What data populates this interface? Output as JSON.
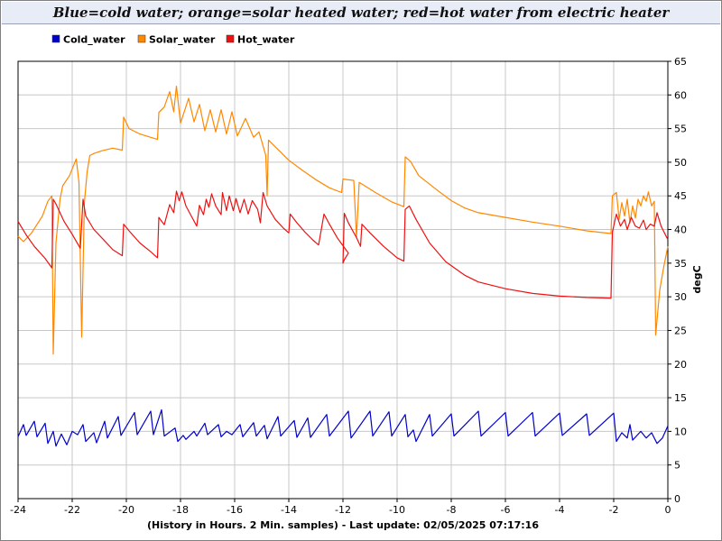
{
  "chart_data": {
    "type": "line",
    "title": "Blue=cold water; orange=solar heated water; red=hot water from electric heater",
    "xlabel": "(History in Hours. 2 Min. samples) - Last update: 02/05/2025 07:17:16",
    "ylabel": "degC",
    "xlim": [
      -24,
      0
    ],
    "ylim": [
      0,
      65
    ],
    "x_ticks": [
      "-24",
      "-22",
      "-20",
      "-18",
      "-16",
      "-14",
      "-12",
      "-10",
      "-8",
      "-6",
      "-4",
      "-2",
      "0"
    ],
    "y_ticks": [
      "0",
      "5",
      "10",
      "15",
      "20",
      "25",
      "30",
      "35",
      "40",
      "45",
      "50",
      "55",
      "60",
      "65"
    ],
    "y_axis_side": "right",
    "grid": true,
    "legend_position": "top-left",
    "series": [
      {
        "name": "Cold_water",
        "color": "#0000cc",
        "points": [
          [
            -24,
            9.2
          ],
          [
            -23.8,
            11
          ],
          [
            -23.7,
            9.4
          ],
          [
            -23.4,
            11.5
          ],
          [
            -23.3,
            9.2
          ],
          [
            -23,
            11.2
          ],
          [
            -22.9,
            8.2
          ],
          [
            -22.7,
            10
          ],
          [
            -22.6,
            7.8
          ],
          [
            -22.4,
            9.6
          ],
          [
            -22.2,
            8
          ],
          [
            -22,
            10
          ],
          [
            -21.8,
            9.5
          ],
          [
            -21.6,
            11
          ],
          [
            -21.5,
            8.5
          ],
          [
            -21.2,
            9.8
          ],
          [
            -21.1,
            8.3
          ],
          [
            -20.8,
            11.5
          ],
          [
            -20.7,
            9
          ],
          [
            -20.3,
            12.2
          ],
          [
            -20.2,
            9.4
          ],
          [
            -19.7,
            12.8
          ],
          [
            -19.6,
            9.5
          ],
          [
            -19.1,
            13
          ],
          [
            -19,
            9.5
          ],
          [
            -18.7,
            13.2
          ],
          [
            -18.6,
            9.3
          ],
          [
            -18.2,
            10.5
          ],
          [
            -18.1,
            8.5
          ],
          [
            -17.9,
            9.4
          ],
          [
            -17.8,
            8.8
          ],
          [
            -17.5,
            10
          ],
          [
            -17.4,
            9.3
          ],
          [
            -17.1,
            11.2
          ],
          [
            -17,
            9.5
          ],
          [
            -16.6,
            11
          ],
          [
            -16.5,
            9.2
          ],
          [
            -16.3,
            10
          ],
          [
            -16.1,
            9.5
          ],
          [
            -15.8,
            11
          ],
          [
            -15.7,
            9.2
          ],
          [
            -15.3,
            11.3
          ],
          [
            -15.2,
            9.3
          ],
          [
            -14.9,
            10.9
          ],
          [
            -14.8,
            8.9
          ],
          [
            -14.4,
            12.2
          ],
          [
            -14.3,
            9.3
          ],
          [
            -13.8,
            11.6
          ],
          [
            -13.7,
            9.1
          ],
          [
            -13.3,
            12
          ],
          [
            -13.2,
            9.1
          ],
          [
            -12.6,
            12.5
          ],
          [
            -12.5,
            9.3
          ],
          [
            -11.8,
            13
          ],
          [
            -11.7,
            9
          ],
          [
            -11,
            13
          ],
          [
            -10.9,
            9.3
          ],
          [
            -10.3,
            12.9
          ],
          [
            -10.2,
            9.3
          ],
          [
            -9.7,
            12.5
          ],
          [
            -9.6,
            9.2
          ],
          [
            -9.4,
            10.2
          ],
          [
            -9.3,
            8.5
          ],
          [
            -8.8,
            12.5
          ],
          [
            -8.7,
            9.3
          ],
          [
            -8,
            12.6
          ],
          [
            -7.9,
            9.3
          ],
          [
            -7,
            13
          ],
          [
            -6.9,
            9.3
          ],
          [
            -6,
            12.8
          ],
          [
            -5.9,
            9.3
          ],
          [
            -5,
            12.8
          ],
          [
            -4.9,
            9.3
          ],
          [
            -4,
            12.7
          ],
          [
            -3.9,
            9.4
          ],
          [
            -3,
            12.6
          ],
          [
            -2.9,
            9.4
          ],
          [
            -2,
            12.7
          ],
          [
            -1.9,
            8.5
          ],
          [
            -1.7,
            9.8
          ],
          [
            -1.5,
            9
          ],
          [
            -1.4,
            11
          ],
          [
            -1.3,
            8.7
          ],
          [
            -1,
            10
          ],
          [
            -0.8,
            9
          ],
          [
            -0.6,
            9.8
          ],
          [
            -0.4,
            8.2
          ],
          [
            -0.2,
            9
          ],
          [
            0,
            10.8
          ]
        ]
      },
      {
        "name": "Solar_water",
        "color": "#ff8800",
        "points": [
          [
            -24,
            39
          ],
          [
            -23.8,
            38.2
          ],
          [
            -23.5,
            39.5
          ],
          [
            -23.1,
            42
          ],
          [
            -22.9,
            44.2
          ],
          [
            -22.75,
            45
          ],
          [
            -22.7,
            21.5
          ],
          [
            -22.6,
            38
          ],
          [
            -22.45,
            44.5
          ],
          [
            -22.35,
            46.5
          ],
          [
            -22.1,
            48
          ],
          [
            -21.85,
            50.5
          ],
          [
            -21.75,
            47
          ],
          [
            -21.65,
            24
          ],
          [
            -21.55,
            44
          ],
          [
            -21.45,
            48.5
          ],
          [
            -21.35,
            51
          ],
          [
            -21.2,
            51.3
          ],
          [
            -20.9,
            51.7
          ],
          [
            -20.5,
            52.1
          ],
          [
            -20.15,
            51.8
          ],
          [
            -20.1,
            56.7
          ],
          [
            -19.9,
            55
          ],
          [
            -19.5,
            54.2
          ],
          [
            -19.1,
            53.7
          ],
          [
            -18.85,
            53.4
          ],
          [
            -18.8,
            57.4
          ],
          [
            -18.6,
            58.2
          ],
          [
            -18.4,
            60.5
          ],
          [
            -18.25,
            57.5
          ],
          [
            -18.15,
            61.3
          ],
          [
            -18,
            55.8
          ],
          [
            -17.7,
            59.5
          ],
          [
            -17.5,
            56
          ],
          [
            -17.3,
            58.6
          ],
          [
            -17.1,
            54.7
          ],
          [
            -16.9,
            57.8
          ],
          [
            -16.7,
            54.5
          ],
          [
            -16.5,
            57.8
          ],
          [
            -16.3,
            54.2
          ],
          [
            -16.1,
            57.5
          ],
          [
            -15.9,
            53.9
          ],
          [
            -15.6,
            56.5
          ],
          [
            -15.3,
            53.7
          ],
          [
            -15.1,
            54.5
          ],
          [
            -14.85,
            51
          ],
          [
            -14.8,
            45
          ],
          [
            -14.75,
            53.3
          ],
          [
            -14.55,
            52.5
          ],
          [
            -14.3,
            51.5
          ],
          [
            -14,
            50.3
          ],
          [
            -13.5,
            48.8
          ],
          [
            -13,
            47.4
          ],
          [
            -12.5,
            46.2
          ],
          [
            -12.05,
            45.5
          ],
          [
            -12,
            47.5
          ],
          [
            -11.6,
            47.3
          ],
          [
            -11.5,
            38.8
          ],
          [
            -11.4,
            47
          ],
          [
            -11.2,
            46.5
          ],
          [
            -10.8,
            45.5
          ],
          [
            -10.2,
            44.1
          ],
          [
            -9.75,
            43.4
          ],
          [
            -9.7,
            50.8
          ],
          [
            -9.5,
            50.1
          ],
          [
            -9.2,
            48
          ],
          [
            -8.5,
            45.8
          ],
          [
            -8,
            44.3
          ],
          [
            -7.5,
            43.2
          ],
          [
            -7,
            42.5
          ],
          [
            -6,
            41.8
          ],
          [
            -5,
            41.1
          ],
          [
            -4,
            40.5
          ],
          [
            -3,
            39.8
          ],
          [
            -2.1,
            39.4
          ],
          [
            -2.05,
            45
          ],
          [
            -1.9,
            45.5
          ],
          [
            -1.8,
            41.5
          ],
          [
            -1.7,
            44
          ],
          [
            -1.6,
            42
          ],
          [
            -1.5,
            44.5
          ],
          [
            -1.4,
            41
          ],
          [
            -1.3,
            43.5
          ],
          [
            -1.2,
            41.7
          ],
          [
            -1.1,
            44.5
          ],
          [
            -1,
            43.5
          ],
          [
            -0.9,
            45
          ],
          [
            -0.8,
            44.2
          ],
          [
            -0.72,
            45.6
          ],
          [
            -0.6,
            43.5
          ],
          [
            -0.5,
            44.2
          ],
          [
            -0.45,
            24.3
          ],
          [
            -0.3,
            31
          ],
          [
            -0.15,
            34.5
          ],
          [
            0,
            37.5
          ]
        ]
      },
      {
        "name": "Hot_water",
        "color": "#ee1111",
        "points": [
          [
            -24,
            41.2
          ],
          [
            -23.7,
            39.2
          ],
          [
            -23.4,
            37.5
          ],
          [
            -23,
            35.7
          ],
          [
            -22.75,
            34.3
          ],
          [
            -22.7,
            44.5
          ],
          [
            -22.6,
            43.8
          ],
          [
            -22.3,
            41.2
          ],
          [
            -22,
            39.3
          ],
          [
            -21.7,
            37.2
          ],
          [
            -21.6,
            44.5
          ],
          [
            -21.5,
            42
          ],
          [
            -21.2,
            40
          ],
          [
            -20.8,
            38.3
          ],
          [
            -20.5,
            37
          ],
          [
            -20.15,
            36.1
          ],
          [
            -20.1,
            40.8
          ],
          [
            -19.9,
            39.8
          ],
          [
            -19.5,
            38
          ],
          [
            -19.1,
            36.7
          ],
          [
            -18.85,
            35.8
          ],
          [
            -18.8,
            41.8
          ],
          [
            -18.6,
            40.7
          ],
          [
            -18.4,
            43.7
          ],
          [
            -18.25,
            42.5
          ],
          [
            -18.15,
            45.7
          ],
          [
            -18.05,
            44.3
          ],
          [
            -17.95,
            45.6
          ],
          [
            -17.8,
            43.5
          ],
          [
            -17.6,
            42
          ],
          [
            -17.4,
            40.5
          ],
          [
            -17.3,
            43.6
          ],
          [
            -17.15,
            42.2
          ],
          [
            -17.05,
            44.5
          ],
          [
            -16.95,
            43.3
          ],
          [
            -16.85,
            45.3
          ],
          [
            -16.7,
            43.5
          ],
          [
            -16.5,
            42.2
          ],
          [
            -16.45,
            45.5
          ],
          [
            -16.3,
            42.8
          ],
          [
            -16.2,
            45
          ],
          [
            -16.05,
            42.8
          ],
          [
            -15.95,
            44.6
          ],
          [
            -15.8,
            42.5
          ],
          [
            -15.65,
            44.5
          ],
          [
            -15.5,
            42.3
          ],
          [
            -15.35,
            44.3
          ],
          [
            -15.15,
            43
          ],
          [
            -15.05,
            41
          ],
          [
            -14.95,
            45.5
          ],
          [
            -14.8,
            43.5
          ],
          [
            -14.5,
            41.5
          ],
          [
            -14.2,
            40.2
          ],
          [
            -14,
            39.5
          ],
          [
            -13.95,
            42.3
          ],
          [
            -13.7,
            41
          ],
          [
            -13.4,
            39.6
          ],
          [
            -13.1,
            38.4
          ],
          [
            -12.9,
            37.7
          ],
          [
            -12.7,
            42.3
          ],
          [
            -12.5,
            40.8
          ],
          [
            -12.2,
            38.7
          ],
          [
            -11.8,
            36.5
          ],
          [
            -11.95,
            35.5
          ],
          [
            -12,
            35
          ],
          [
            -11.95,
            42.4
          ],
          [
            -11.8,
            41
          ],
          [
            -11.5,
            38.8
          ],
          [
            -11.35,
            37.5
          ],
          [
            -11.3,
            40.8
          ],
          [
            -11,
            39.5
          ],
          [
            -10.5,
            37.5
          ],
          [
            -10,
            35.8
          ],
          [
            -9.75,
            35.3
          ],
          [
            -9.7,
            43
          ],
          [
            -9.55,
            43.5
          ],
          [
            -9.3,
            41.5
          ],
          [
            -8.8,
            38
          ],
          [
            -8.2,
            35.2
          ],
          [
            -7.5,
            33.2
          ],
          [
            -7,
            32.2
          ],
          [
            -6,
            31.2
          ],
          [
            -5,
            30.5
          ],
          [
            -4,
            30.1
          ],
          [
            -3,
            29.9
          ],
          [
            -2.1,
            29.8
          ],
          [
            -2.05,
            39.6
          ],
          [
            -1.9,
            42.3
          ],
          [
            -1.75,
            40.5
          ],
          [
            -1.6,
            41.5
          ],
          [
            -1.5,
            40
          ],
          [
            -1.35,
            41.8
          ],
          [
            -1.2,
            40.5
          ],
          [
            -1.05,
            40.2
          ],
          [
            -0.9,
            41.4
          ],
          [
            -0.8,
            40
          ],
          [
            -0.65,
            40.8
          ],
          [
            -0.5,
            40.5
          ],
          [
            -0.4,
            42.5
          ],
          [
            -0.25,
            40.5
          ],
          [
            -0.1,
            39.3
          ],
          [
            0,
            38.5
          ]
        ]
      }
    ]
  }
}
